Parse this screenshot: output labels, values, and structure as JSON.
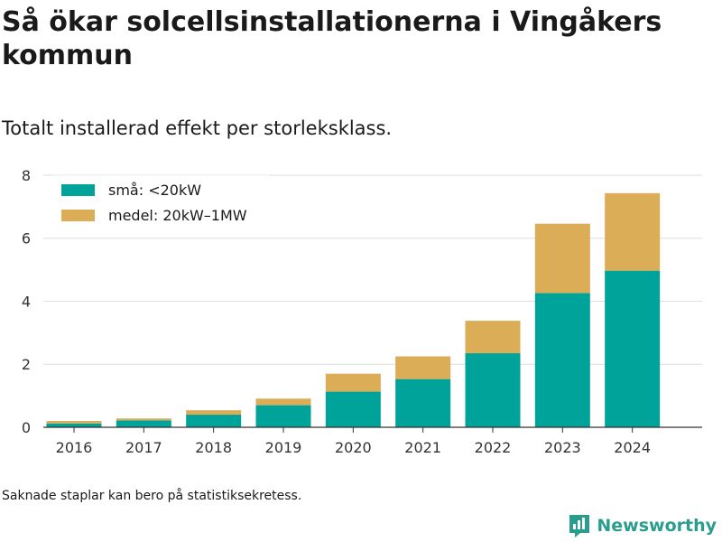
{
  "title": "Så ökar solcellsinstallationerna i Vingåkers kommun",
  "subtitle": "Totalt installerad effekt per storleksklass.",
  "footnote": "Saknade staplar kan bero på statistiksekretess.",
  "brand": {
    "name": "Newsworthy",
    "color": "#2a9d8f"
  },
  "chart_data": {
    "type": "bar",
    "stacked": true,
    "categories": [
      "2016",
      "2017",
      "2018",
      "2019",
      "2020",
      "2021",
      "2022",
      "2023",
      "2024"
    ],
    "series": [
      {
        "name": "små: <20kW",
        "color": "#00a39a",
        "values": [
          0.12,
          0.22,
          0.4,
          0.7,
          1.13,
          1.53,
          2.35,
          4.26,
          4.97
        ]
      },
      {
        "name": "medel: 20kW–1MW",
        "color": "#dbad57",
        "values": [
          0.08,
          0.06,
          0.14,
          0.21,
          0.57,
          0.72,
          1.03,
          2.2,
          2.46
        ]
      }
    ],
    "yticks": [
      0,
      2,
      4,
      6,
      8
    ],
    "ylim": [
      0,
      8.4
    ],
    "grid": true,
    "legend_position": "top-left"
  }
}
